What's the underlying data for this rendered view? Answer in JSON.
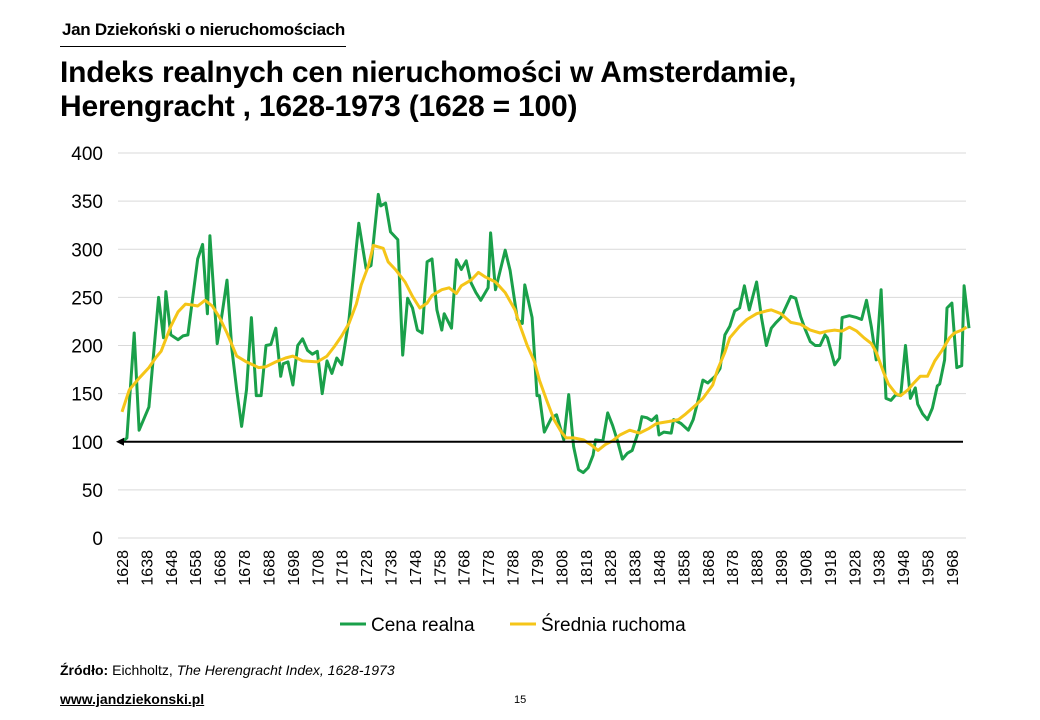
{
  "header": {
    "brand": "Jan Dziekoński o nieruchomościach",
    "title_line1": "Indeks realnych cen nieruchomości w Amsterdamie,",
    "title_line2": "Herengracht , 1628-1973 (1628 = 100)"
  },
  "footer": {
    "source_label": "Źródło:",
    "source_author": " Eichholtz, ",
    "source_title": " The Herengracht Index, 1628-1973",
    "website": "www.jandziekonski.pl",
    "page_number": "15"
  },
  "colors": {
    "green": "#1aa04a",
    "yellow": "#f5c518",
    "grid": "#d9d9d9",
    "baseline": "#000000"
  },
  "chart_data": {
    "type": "line",
    "title": "Indeks realnych cen nieruchomości w Amsterdamie, Herengracht , 1628-1973 (1628 = 100)",
    "xlabel": "",
    "ylabel": "",
    "xlim": [
      1628,
      1975
    ],
    "ylim": [
      0,
      400
    ],
    "yticks": [
      0,
      50,
      100,
      150,
      200,
      250,
      300,
      350,
      400
    ],
    "xticks": [
      1628,
      1638,
      1648,
      1658,
      1668,
      1678,
      1688,
      1698,
      1708,
      1718,
      1728,
      1738,
      1748,
      1758,
      1768,
      1778,
      1788,
      1798,
      1808,
      1818,
      1828,
      1838,
      1848,
      1858,
      1868,
      1878,
      1888,
      1898,
      1908,
      1918,
      1928,
      1938,
      1948,
      1958,
      1968
    ],
    "grid": true,
    "reference_line": 100,
    "legend_position": "bottom",
    "series": [
      {
        "name": "Cena realna",
        "color": "#1aa04a",
        "points": [
          [
            1628,
            100
          ],
          [
            1630,
            104
          ],
          [
            1633,
            213
          ],
          [
            1635,
            112
          ],
          [
            1639,
            136
          ],
          [
            1643,
            250
          ],
          [
            1645,
            208
          ],
          [
            1646,
            256
          ],
          [
            1648,
            211
          ],
          [
            1651,
            206
          ],
          [
            1653,
            210
          ],
          [
            1655,
            211
          ],
          [
            1659,
            290
          ],
          [
            1661,
            305
          ],
          [
            1663,
            233
          ],
          [
            1664,
            314
          ],
          [
            1667,
            202
          ],
          [
            1669,
            233
          ],
          [
            1671,
            268
          ],
          [
            1673,
            197
          ],
          [
            1675,
            154
          ],
          [
            1677,
            116
          ],
          [
            1679,
            154
          ],
          [
            1681,
            229
          ],
          [
            1683,
            148
          ],
          [
            1685,
            148
          ],
          [
            1687,
            200
          ],
          [
            1689,
            201
          ],
          [
            1691,
            218
          ],
          [
            1693,
            168
          ],
          [
            1694,
            181
          ],
          [
            1696,
            183
          ],
          [
            1698,
            159
          ],
          [
            1700,
            200
          ],
          [
            1702,
            207
          ],
          [
            1704,
            195
          ],
          [
            1706,
            191
          ],
          [
            1708,
            194
          ],
          [
            1710,
            150
          ],
          [
            1712,
            184
          ],
          [
            1714,
            171
          ],
          [
            1716,
            187
          ],
          [
            1718,
            180
          ],
          [
            1721,
            227
          ],
          [
            1725,
            327
          ],
          [
            1728,
            280
          ],
          [
            1730,
            283
          ],
          [
            1733,
            357
          ],
          [
            1734,
            345
          ],
          [
            1736,
            348
          ],
          [
            1738,
            318
          ],
          [
            1741,
            310
          ],
          [
            1743,
            190
          ],
          [
            1745,
            249
          ],
          [
            1747,
            239
          ],
          [
            1749,
            216
          ],
          [
            1751,
            213
          ],
          [
            1753,
            287
          ],
          [
            1755,
            290
          ],
          [
            1757,
            237
          ],
          [
            1759,
            216
          ],
          [
            1760,
            233
          ],
          [
            1763,
            218
          ],
          [
            1765,
            289
          ],
          [
            1767,
            279
          ],
          [
            1769,
            288
          ],
          [
            1771,
            265
          ],
          [
            1773,
            255
          ],
          [
            1775,
            247
          ],
          [
            1778,
            260
          ],
          [
            1779,
            317
          ],
          [
            1781,
            258
          ],
          [
            1785,
            299
          ],
          [
            1787,
            278
          ],
          [
            1790,
            227
          ],
          [
            1792,
            223
          ],
          [
            1793,
            263
          ],
          [
            1796,
            229
          ],
          [
            1798,
            148
          ],
          [
            1799,
            148
          ],
          [
            1801,
            110
          ],
          [
            1804,
            125
          ],
          [
            1806,
            128
          ],
          [
            1809,
            102
          ],
          [
            1811,
            149
          ],
          [
            1813,
            95
          ],
          [
            1815,
            71
          ],
          [
            1817,
            68
          ],
          [
            1819,
            73
          ],
          [
            1821,
            86
          ],
          [
            1822,
            102
          ],
          [
            1825,
            101
          ],
          [
            1827,
            130
          ],
          [
            1829,
            117
          ],
          [
            1831,
            101
          ],
          [
            1833,
            82
          ],
          [
            1835,
            88
          ],
          [
            1837,
            91
          ],
          [
            1840,
            114
          ],
          [
            1841,
            126
          ],
          [
            1843,
            125
          ],
          [
            1845,
            122
          ],
          [
            1847,
            127
          ],
          [
            1848,
            107
          ],
          [
            1850,
            110
          ],
          [
            1853,
            109
          ],
          [
            1854,
            123
          ],
          [
            1857,
            119
          ],
          [
            1860,
            112
          ],
          [
            1862,
            123
          ],
          [
            1864,
            143
          ],
          [
            1866,
            164
          ],
          [
            1868,
            161
          ],
          [
            1871,
            168
          ],
          [
            1873,
            176
          ],
          [
            1875,
            211
          ],
          [
            1877,
            220
          ],
          [
            1879,
            236
          ],
          [
            1881,
            239
          ],
          [
            1883,
            262
          ],
          [
            1885,
            237
          ],
          [
            1888,
            266
          ],
          [
            1890,
            229
          ],
          [
            1892,
            200
          ],
          [
            1894,
            218
          ],
          [
            1896,
            224
          ],
          [
            1898,
            229
          ],
          [
            1900,
            240
          ],
          [
            1902,
            251
          ],
          [
            1904,
            249
          ],
          [
            1906,
            230
          ],
          [
            1908,
            216
          ],
          [
            1910,
            204
          ],
          [
            1912,
            200
          ],
          [
            1914,
            200
          ],
          [
            1916,
            211
          ],
          [
            1917,
            208
          ],
          [
            1920,
            180
          ],
          [
            1922,
            187
          ],
          [
            1923,
            229
          ],
          [
            1926,
            231
          ],
          [
            1929,
            229
          ],
          [
            1931,
            227
          ],
          [
            1933,
            247
          ],
          [
            1935,
            219
          ],
          [
            1937,
            185
          ],
          [
            1939,
            258
          ],
          [
            1941,
            145
          ],
          [
            1943,
            143
          ],
          [
            1945,
            149
          ],
          [
            1947,
            148
          ],
          [
            1949,
            200
          ],
          [
            1951,
            145
          ],
          [
            1953,
            156
          ],
          [
            1954,
            139
          ],
          [
            1956,
            129
          ],
          [
            1958,
            123
          ],
          [
            1960,
            135
          ],
          [
            1962,
            158
          ],
          [
            1963,
            160
          ],
          [
            1965,
            185
          ],
          [
            1966,
            239
          ],
          [
            1968,
            244
          ],
          [
            1970,
            177
          ],
          [
            1972,
            179
          ],
          [
            1973,
            262
          ],
          [
            1975,
            218
          ]
        ]
      },
      {
        "name": "Średnia ruchoma",
        "color": "#f5c518",
        "points": [
          [
            1628,
            131
          ],
          [
            1631,
            154
          ],
          [
            1635,
            166
          ],
          [
            1639,
            177
          ],
          [
            1642,
            188
          ],
          [
            1644,
            194
          ],
          [
            1648,
            220
          ],
          [
            1651,
            235
          ],
          [
            1654,
            243
          ],
          [
            1657,
            242
          ],
          [
            1659,
            241
          ],
          [
            1662,
            247
          ],
          [
            1665,
            241
          ],
          [
            1668,
            229
          ],
          [
            1671,
            213
          ],
          [
            1675,
            189
          ],
          [
            1679,
            183
          ],
          [
            1684,
            177
          ],
          [
            1687,
            178
          ],
          [
            1691,
            183
          ],
          [
            1695,
            187
          ],
          [
            1698,
            189
          ],
          [
            1702,
            184
          ],
          [
            1708,
            183
          ],
          [
            1712,
            189
          ],
          [
            1715,
            199
          ],
          [
            1718,
            210
          ],
          [
            1721,
            223
          ],
          [
            1724,
            243
          ],
          [
            1726,
            263
          ],
          [
            1729,
            283
          ],
          [
            1731,
            304
          ],
          [
            1735,
            301
          ],
          [
            1737,
            287
          ],
          [
            1740,
            279
          ],
          [
            1744,
            266
          ],
          [
            1747,
            251
          ],
          [
            1750,
            239
          ],
          [
            1753,
            244
          ],
          [
            1755,
            252
          ],
          [
            1759,
            258
          ],
          [
            1762,
            260
          ],
          [
            1765,
            254
          ],
          [
            1767,
            262
          ],
          [
            1771,
            268
          ],
          [
            1774,
            276
          ],
          [
            1777,
            271
          ],
          [
            1781,
            266
          ],
          [
            1785,
            255
          ],
          [
            1789,
            237
          ],
          [
            1791,
            221
          ],
          [
            1794,
            200
          ],
          [
            1797,
            183
          ],
          [
            1799,
            164
          ],
          [
            1802,
            143
          ],
          [
            1805,
            123
          ],
          [
            1808,
            110
          ],
          [
            1810,
            104
          ],
          [
            1813,
            104
          ],
          [
            1817,
            102
          ],
          [
            1820,
            97
          ],
          [
            1823,
            91
          ],
          [
            1826,
            97
          ],
          [
            1829,
            101
          ],
          [
            1832,
            107
          ],
          [
            1836,
            112
          ],
          [
            1840,
            109
          ],
          [
            1844,
            114
          ],
          [
            1847,
            119
          ],
          [
            1852,
            121
          ],
          [
            1856,
            123
          ],
          [
            1859,
            129
          ],
          [
            1863,
            138
          ],
          [
            1866,
            145
          ],
          [
            1870,
            159
          ],
          [
            1872,
            175
          ],
          [
            1875,
            193
          ],
          [
            1877,
            208
          ],
          [
            1881,
            220
          ],
          [
            1884,
            227
          ],
          [
            1888,
            233
          ],
          [
            1892,
            236
          ],
          [
            1894,
            237
          ],
          [
            1898,
            233
          ],
          [
            1902,
            224
          ],
          [
            1906,
            222
          ],
          [
            1910,
            216
          ],
          [
            1914,
            213
          ],
          [
            1917,
            215
          ],
          [
            1920,
            216
          ],
          [
            1923,
            215
          ],
          [
            1926,
            219
          ],
          [
            1929,
            215
          ],
          [
            1932,
            208
          ],
          [
            1935,
            202
          ],
          [
            1937,
            193
          ],
          [
            1940,
            172
          ],
          [
            1942,
            160
          ],
          [
            1945,
            150
          ],
          [
            1947,
            148
          ],
          [
            1950,
            154
          ],
          [
            1952,
            160
          ],
          [
            1955,
            168
          ],
          [
            1958,
            168
          ],
          [
            1961,
            184
          ],
          [
            1964,
            195
          ],
          [
            1967,
            208
          ],
          [
            1969,
            213
          ],
          [
            1972,
            216
          ],
          [
            1974,
            219
          ]
        ]
      }
    ]
  }
}
